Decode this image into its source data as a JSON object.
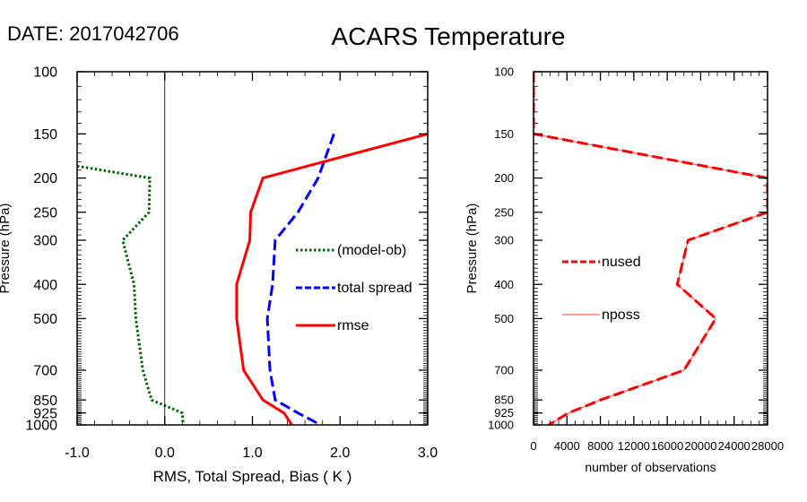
{
  "header": {
    "date_label": "DATE: 2017042706",
    "title": "ACARS Temperature"
  },
  "chart_data": [
    {
      "type": "line",
      "ylabel": "Pressure (hPa)",
      "xlabel": "RMS, Total Spread, Bias ( K )",
      "y_scale": "log-pressure, inverted",
      "ylim": [
        1000,
        100
      ],
      "xlim": [
        -1.0,
        3.0
      ],
      "x_ticks": [
        "-1.0",
        "0.0",
        "1.0",
        "2.0",
        "3.0"
      ],
      "x_tick_values": [
        -1,
        0,
        1,
        2,
        3
      ],
      "y_ticks": [
        "100",
        "150",
        "200",
        "250",
        "300",
        "400",
        "500",
        "700",
        "850",
        "925",
        "1000"
      ],
      "y_tick_values": [
        100,
        150,
        200,
        250,
        300,
        400,
        500,
        700,
        850,
        925,
        1000
      ],
      "zero_line": 0,
      "legend_position": "center-right",
      "series": [
        {
          "name": "(model-ob)",
          "color": "#006400",
          "style": "dotted",
          "points": [
            [
              -1.0,
              185
            ],
            [
              -0.17,
              200
            ],
            [
              -0.18,
              250
            ],
            [
              -0.48,
              300
            ],
            [
              -0.35,
              400
            ],
            [
              -0.33,
              500
            ],
            [
              -0.25,
              700
            ],
            [
              -0.15,
              850
            ],
            [
              0.2,
              925
            ],
            [
              0.21,
              1000
            ]
          ]
        },
        {
          "name": "total spread",
          "color": "#0000ff",
          "style": "dashed",
          "points": [
            [
              1.93,
              150
            ],
            [
              1.75,
              200
            ],
            [
              1.52,
              250
            ],
            [
              1.26,
              300
            ],
            [
              1.23,
              400
            ],
            [
              1.17,
              500
            ],
            [
              1.2,
              700
            ],
            [
              1.26,
              850
            ],
            [
              1.52,
              925
            ],
            [
              1.78,
              1000
            ]
          ]
        },
        {
          "name": "rmse",
          "color": "#ff0000",
          "style": "solid",
          "points": [
            [
              3.0,
              150
            ],
            [
              1.12,
              200
            ],
            [
              0.98,
              250
            ],
            [
              0.97,
              300
            ],
            [
              0.82,
              400
            ],
            [
              0.82,
              500
            ],
            [
              0.9,
              700
            ],
            [
              1.12,
              850
            ],
            [
              1.36,
              925
            ],
            [
              1.45,
              1000
            ]
          ]
        }
      ]
    },
    {
      "type": "line",
      "ylabel": "Pressure (hPa)",
      "xlabel": "number of observations",
      "y_scale": "log-pressure, inverted",
      "ylim": [
        1000,
        100
      ],
      "xlim": [
        0,
        28000
      ],
      "x_ticks": [
        "0",
        "4000",
        "8000",
        "12000",
        "16000",
        "20000",
        "24000",
        "28000"
      ],
      "x_tick_values": [
        0,
        4000,
        8000,
        12000,
        16000,
        20000,
        24000,
        28000
      ],
      "y_ticks": [
        "100",
        "150",
        "200",
        "250",
        "300",
        "400",
        "500",
        "700",
        "850",
        "925",
        "1000"
      ],
      "y_tick_values": [
        100,
        150,
        200,
        250,
        300,
        400,
        500,
        700,
        850,
        925,
        1000
      ],
      "legend_position": "center-left",
      "series": [
        {
          "name": "nused",
          "color": "#ff0000",
          "style": "dashed",
          "points": [
            [
              0,
              100
            ],
            [
              0,
              150
            ],
            [
              28000,
              200
            ],
            [
              28000,
              250
            ],
            [
              18500,
              300
            ],
            [
              17200,
              400
            ],
            [
              21800,
              500
            ],
            [
              18000,
              700
            ],
            [
              8000,
              850
            ],
            [
              4200,
              925
            ],
            [
              1800,
              1000
            ]
          ]
        },
        {
          "name": "nposs",
          "color": "#ff6060",
          "style": "thin-solid",
          "points": [
            [
              0,
              100
            ],
            [
              0,
              150
            ],
            [
              28000,
              200
            ],
            [
              28000,
              250
            ],
            [
              18500,
              300
            ],
            [
              17200,
              400
            ],
            [
              21800,
              500
            ],
            [
              18000,
              700
            ],
            [
              8000,
              850
            ],
            [
              4200,
              925
            ],
            [
              1800,
              1000
            ]
          ]
        }
      ]
    }
  ]
}
